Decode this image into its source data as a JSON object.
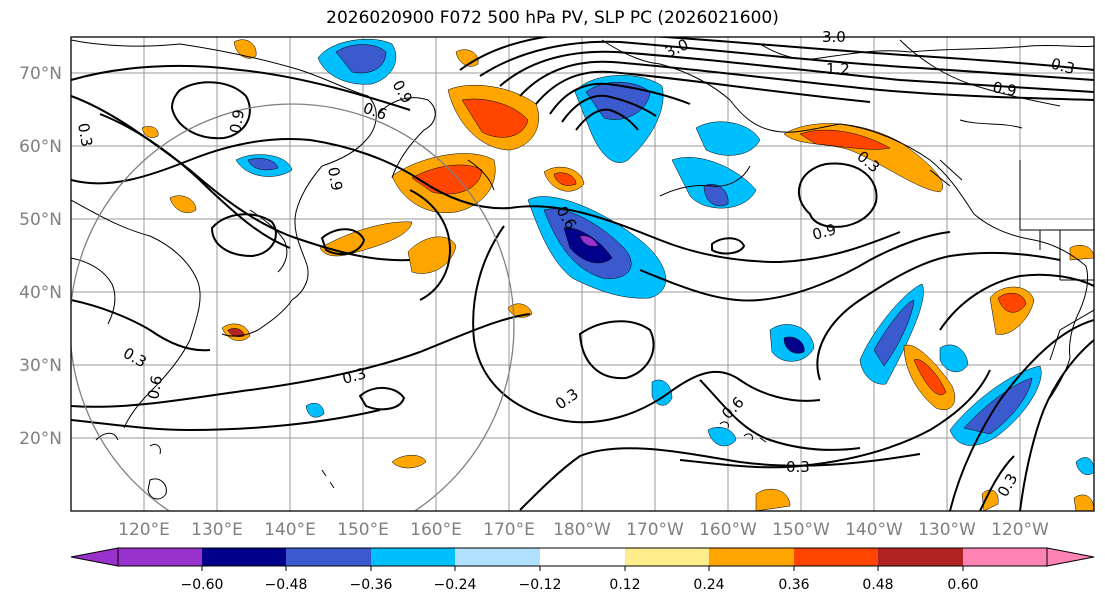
{
  "title": "2026020900 F072 500 hPa PV, SLP PC (2026021600)",
  "map": {
    "lon_labels": [
      "120°E",
      "130°E",
      "140°E",
      "150°E",
      "160°E",
      "170°E",
      "180°W",
      "170°W",
      "160°W",
      "150°W",
      "140°W",
      "130°W",
      "120°W"
    ],
    "lat_labels": [
      "70°N",
      "60°N",
      "50°N",
      "40°N",
      "30°N",
      "20°N"
    ],
    "contour_labels": [
      "3.0",
      "3.0",
      "1.2",
      "0.9",
      "0.9",
      "0.6",
      "0.9",
      "0.3",
      "0.9",
      "0.9",
      "0.6",
      "0.3",
      "0.3",
      "0.3",
      "0.6",
      "0.6",
      "0.3",
      "0.3",
      "0.3",
      "0.3"
    ],
    "colors": {
      "land_line": "#000000",
      "grid": "#9a9a9a",
      "circle": "#808080"
    }
  },
  "colorbar": {
    "ticks": [
      "−0.60",
      "−0.48",
      "−0.36",
      "−0.24",
      "−0.12",
      "0.12",
      "0.24",
      "0.36",
      "0.48",
      "0.60"
    ],
    "colors": [
      "#9932cc",
      "#00008b",
      "#3a5acd",
      "#00bfff",
      "#b0e2ff",
      "#ffffff",
      "#ffec8b",
      "#ffa500",
      "#ff4500",
      "#b22222",
      "#ff83b4"
    ]
  }
}
